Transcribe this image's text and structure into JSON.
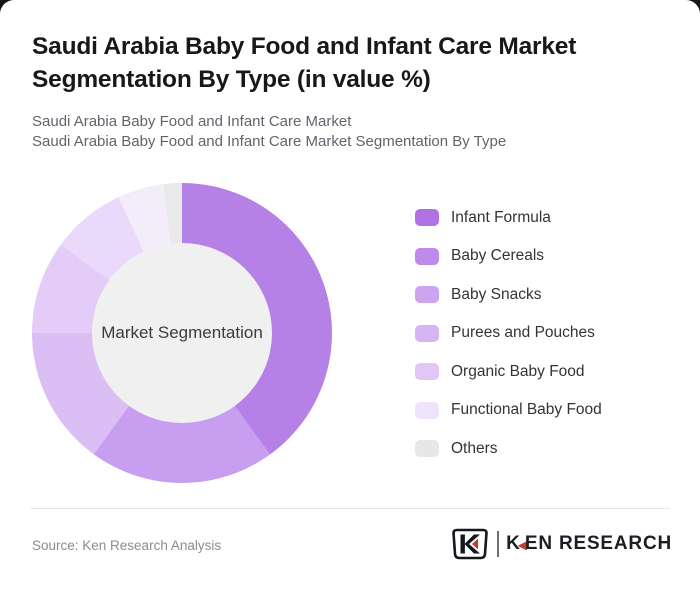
{
  "page": {
    "background_color": "#161616",
    "card_color": "#ffffff"
  },
  "header": {
    "title": "Saudi Arabia Baby Food and Infant Care Market Segmentation By Type (in value %)",
    "subtitle1": "Saudi Arabia Baby Food and Infant Care Market",
    "subtitle2": "Saudi Arabia Baby Food and Infant Care Market Segmentation By Type"
  },
  "chart_data": {
    "type": "pie",
    "variant": "donut",
    "title": "Saudi Arabia Baby Food and Infant Care Market Segmentation By Type (in value %)",
    "center_label": "Market Segmentation",
    "start_angle_deg": 0,
    "direction": "clockwise",
    "legend_position": "right",
    "unit": "percent of market value",
    "categories": [
      "Infant Formula",
      "Baby Cereals",
      "Baby Snacks",
      "Purees and Pouches",
      "Organic Baby Food",
      "Functional Baby Food",
      "Others"
    ],
    "values": [
      40,
      20,
      15,
      10,
      8,
      5,
      2
    ],
    "slice_colors": [
      "#b681e6",
      "#c89ff0",
      "#dbbff4",
      "#e3cdf8",
      "#ead9fa",
      "#f2ecfb",
      "#e9e9ea"
    ],
    "legend_swatch_colors": [
      "#b173e3",
      "#be8bea",
      "#cda4ef",
      "#d7b5f3",
      "#e1c7f6",
      "#efe3fb",
      "#e8e6e9"
    ],
    "inner_circle_color": "#f0f0f1"
  },
  "footer": {
    "source": "Source: Ken Research Analysis",
    "logo": {
      "badge_letter": "K",
      "brand_first_letter": "K",
      "brand_rest": "EN RESEARCH",
      "accent_color": "#c23b31",
      "ink_color": "#1b1e24"
    }
  }
}
